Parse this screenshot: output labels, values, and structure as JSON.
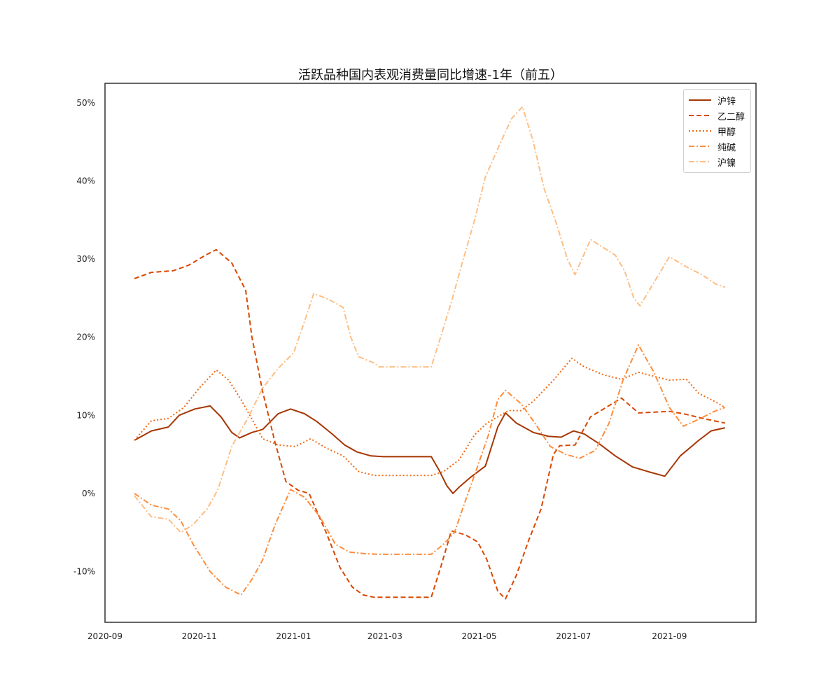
{
  "chart_data": {
    "type": "line",
    "title": "活跃品种国内表观消费量同比增速-1年（前五）",
    "xlabel": "",
    "ylabel": "",
    "x_tick_labels": [
      "2020-09",
      "2020-11",
      "2021-01",
      "2021-03",
      "2021-05",
      "2021-07",
      "2021-09"
    ],
    "y_tick_labels": [
      "-10%",
      "0%",
      "10%",
      "20%",
      "30%",
      "40%",
      "50%"
    ],
    "y_ticks": [
      -10,
      0,
      10,
      20,
      30,
      40,
      50
    ],
    "ylim": [
      -16.5,
      52.5
    ],
    "xlim": [
      "2020-09-01",
      "2021-10-27"
    ],
    "grid": false,
    "legend_position": "top-right",
    "series": [
      {
        "name": "沪锌",
        "color": "#a63603",
        "dash": "solid",
        "points": [
          [
            "2020-09-20",
            6.8
          ],
          [
            "2020-10-01",
            8.0
          ],
          [
            "2020-10-12",
            8.5
          ],
          [
            "2020-10-19",
            10.0
          ],
          [
            "2020-10-29",
            10.8
          ],
          [
            "2020-11-08",
            11.2
          ],
          [
            "2020-11-15",
            9.8
          ],
          [
            "2020-11-22",
            7.8
          ],
          [
            "2020-11-27",
            7.1
          ],
          [
            "2020-12-05",
            7.8
          ],
          [
            "2020-12-12",
            8.2
          ],
          [
            "2020-12-22",
            10.2
          ],
          [
            "2020-12-30",
            10.8
          ],
          [
            "2021-01-08",
            10.2
          ],
          [
            "2021-01-16",
            9.2
          ],
          [
            "2021-01-26",
            7.6
          ],
          [
            "2021-02-03",
            6.2
          ],
          [
            "2021-02-11",
            5.3
          ],
          [
            "2021-02-20",
            4.8
          ],
          [
            "2021-02-28",
            4.7
          ],
          [
            "2021-03-31",
            4.7
          ],
          [
            "2021-04-05",
            3.0
          ],
          [
            "2021-04-10",
            1.0
          ],
          [
            "2021-04-14",
            0.0
          ],
          [
            "2021-04-18",
            0.8
          ],
          [
            "2021-04-25",
            2.0
          ],
          [
            "2021-05-05",
            3.5
          ],
          [
            "2021-05-13",
            8.5
          ],
          [
            "2021-05-18",
            10.3
          ],
          [
            "2021-05-25",
            9.0
          ],
          [
            "2021-06-05",
            7.8
          ],
          [
            "2021-06-15",
            7.3
          ],
          [
            "2021-06-23",
            7.2
          ],
          [
            "2021-07-01",
            8.0
          ],
          [
            "2021-07-08",
            7.6
          ],
          [
            "2021-07-18",
            6.3
          ],
          [
            "2021-07-28",
            4.8
          ],
          [
            "2021-08-08",
            3.4
          ],
          [
            "2021-08-18",
            2.8
          ],
          [
            "2021-08-29",
            2.2
          ],
          [
            "2021-09-08",
            4.8
          ],
          [
            "2021-09-20",
            6.8
          ],
          [
            "2021-09-28",
            8.0
          ],
          [
            "2021-10-07",
            8.4
          ]
        ]
      },
      {
        "name": "乙二醇",
        "color": "#d94801",
        "dash": "dashed",
        "points": [
          [
            "2020-09-20",
            27.5
          ],
          [
            "2020-10-01",
            28.3
          ],
          [
            "2020-10-15",
            28.5
          ],
          [
            "2020-10-25",
            29.2
          ],
          [
            "2020-11-05",
            30.5
          ],
          [
            "2020-11-12",
            31.2
          ],
          [
            "2020-11-22",
            29.5
          ],
          [
            "2020-12-01",
            26.0
          ],
          [
            "2020-12-05",
            20.0
          ],
          [
            "2020-12-12",
            13.0
          ],
          [
            "2020-12-20",
            6.5
          ],
          [
            "2020-12-27",
            1.5
          ],
          [
            "2021-01-04",
            0.4
          ],
          [
            "2021-01-11",
            0.0
          ],
          [
            "2021-01-22",
            -5.0
          ],
          [
            "2021-01-31",
            -9.5
          ],
          [
            "2021-02-08",
            -12.0
          ],
          [
            "2021-02-15",
            -13.0
          ],
          [
            "2021-02-22",
            -13.3
          ],
          [
            "2021-03-31",
            -13.3
          ],
          [
            "2021-04-06",
            -9.5
          ],
          [
            "2021-04-13",
            -4.8
          ],
          [
            "2021-04-22",
            -5.3
          ],
          [
            "2021-04-30",
            -6.2
          ],
          [
            "2021-05-06",
            -8.5
          ],
          [
            "2021-05-13",
            -12.5
          ],
          [
            "2021-05-18",
            -13.5
          ],
          [
            "2021-05-25",
            -10.5
          ],
          [
            "2021-06-02",
            -6.0
          ],
          [
            "2021-06-10",
            -2.0
          ],
          [
            "2021-06-18",
            5.0
          ],
          [
            "2021-06-22",
            6.1
          ],
          [
            "2021-07-02",
            6.2
          ],
          [
            "2021-07-12",
            9.8
          ],
          [
            "2021-07-22",
            11.0
          ],
          [
            "2021-08-01",
            12.2
          ],
          [
            "2021-08-12",
            10.3
          ],
          [
            "2021-09-01",
            10.5
          ],
          [
            "2021-09-10",
            10.2
          ],
          [
            "2021-09-25",
            9.5
          ],
          [
            "2021-10-07",
            9.0
          ]
        ]
      },
      {
        "name": "甲醇",
        "color": "#f16913",
        "dash": "dotted",
        "points": [
          [
            "2020-09-20",
            6.8
          ],
          [
            "2020-10-01",
            9.3
          ],
          [
            "2020-10-12",
            9.6
          ],
          [
            "2020-10-22",
            11.0
          ],
          [
            "2020-11-01",
            13.5
          ],
          [
            "2020-11-12",
            15.8
          ],
          [
            "2020-11-20",
            14.5
          ],
          [
            "2020-11-28",
            12.0
          ],
          [
            "2020-12-05",
            9.5
          ],
          [
            "2020-12-12",
            7.0
          ],
          [
            "2020-12-22",
            6.2
          ],
          [
            "2021-01-02",
            6.0
          ],
          [
            "2021-01-12",
            7.0
          ],
          [
            "2021-01-22",
            5.8
          ],
          [
            "2021-02-02",
            4.8
          ],
          [
            "2021-02-12",
            2.8
          ],
          [
            "2021-02-22",
            2.3
          ],
          [
            "2021-03-31",
            2.3
          ],
          [
            "2021-04-08",
            2.8
          ],
          [
            "2021-04-18",
            4.3
          ],
          [
            "2021-04-28",
            7.5
          ],
          [
            "2021-05-06",
            9.0
          ],
          [
            "2021-05-13",
            9.8
          ],
          [
            "2021-05-20",
            10.6
          ],
          [
            "2021-05-28",
            10.6
          ],
          [
            "2021-06-05",
            11.8
          ],
          [
            "2021-06-18",
            14.5
          ],
          [
            "2021-06-30",
            17.3
          ],
          [
            "2021-07-08",
            16.2
          ],
          [
            "2021-07-20",
            15.2
          ],
          [
            "2021-08-01",
            14.6
          ],
          [
            "2021-08-12",
            15.5
          ],
          [
            "2021-08-22",
            15.0
          ],
          [
            "2021-09-01",
            14.5
          ],
          [
            "2021-09-12",
            14.6
          ],
          [
            "2021-09-20",
            12.8
          ],
          [
            "2021-09-30",
            11.8
          ],
          [
            "2021-10-07",
            11.0
          ]
        ]
      },
      {
        "name": "纯碱",
        "color": "#fd8d3c",
        "dash": "dashdot",
        "points": [
          [
            "2020-09-20",
            0.0
          ],
          [
            "2020-10-01",
            -1.5
          ],
          [
            "2020-10-12",
            -2.0
          ],
          [
            "2020-10-20",
            -3.5
          ],
          [
            "2020-10-28",
            -6.5
          ],
          [
            "2020-11-08",
            -10.0
          ],
          [
            "2020-11-18",
            -12.0
          ],
          [
            "2020-11-28",
            -13.0
          ],
          [
            "2020-12-05",
            -11.0
          ],
          [
            "2020-12-12",
            -8.5
          ],
          [
            "2020-12-20",
            -4.0
          ],
          [
            "2020-12-30",
            0.5
          ],
          [
            "2021-01-08",
            -0.5
          ],
          [
            "2021-01-18",
            -3.0
          ],
          [
            "2021-01-28",
            -6.5
          ],
          [
            "2021-02-06",
            -7.5
          ],
          [
            "2021-02-15",
            -7.7
          ],
          [
            "2021-02-25",
            -7.8
          ],
          [
            "2021-03-31",
            -7.8
          ],
          [
            "2021-04-08",
            -6.5
          ],
          [
            "2021-04-15",
            -5.0
          ],
          [
            "2021-04-22",
            -1.0
          ],
          [
            "2021-04-30",
            3.5
          ],
          [
            "2021-05-07",
            7.5
          ],
          [
            "2021-05-13",
            12.0
          ],
          [
            "2021-05-18",
            13.2
          ],
          [
            "2021-05-28",
            11.5
          ],
          [
            "2021-06-06",
            9.0
          ],
          [
            "2021-06-16",
            6.0
          ],
          [
            "2021-06-26",
            5.0
          ],
          [
            "2021-07-05",
            4.5
          ],
          [
            "2021-07-15",
            5.5
          ],
          [
            "2021-07-24",
            9.0
          ],
          [
            "2021-08-02",
            14.5
          ],
          [
            "2021-08-12",
            19.0
          ],
          [
            "2021-08-22",
            15.5
          ],
          [
            "2021-09-01",
            11.0
          ],
          [
            "2021-09-10",
            8.6
          ],
          [
            "2021-09-20",
            9.5
          ],
          [
            "2021-09-30",
            10.5
          ],
          [
            "2021-10-07",
            11.0
          ]
        ]
      },
      {
        "name": "沪镍",
        "color": "#fdbe85",
        "dash": "dashdot",
        "points": [
          [
            "2020-09-20",
            -0.3
          ],
          [
            "2020-10-01",
            -3.0
          ],
          [
            "2020-10-12",
            -3.3
          ],
          [
            "2020-10-20",
            -5.0
          ],
          [
            "2020-10-28",
            -4.0
          ],
          [
            "2020-11-06",
            -2.0
          ],
          [
            "2020-11-13",
            0.5
          ],
          [
            "2020-11-22",
            6.0
          ],
          [
            "2020-12-02",
            9.5
          ],
          [
            "2020-12-12",
            13.5
          ],
          [
            "2020-12-22",
            16.0
          ],
          [
            "2021-01-01",
            18.0
          ],
          [
            "2021-01-08",
            22.0
          ],
          [
            "2021-01-14",
            25.6
          ],
          [
            "2021-01-24",
            24.8
          ],
          [
            "2021-02-02",
            23.8
          ],
          [
            "2021-02-07",
            20.0
          ],
          [
            "2021-02-12",
            17.5
          ],
          [
            "2021-02-22",
            16.7
          ],
          [
            "2021-02-25",
            16.2
          ],
          [
            "2021-03-31",
            16.2
          ],
          [
            "2021-04-06",
            20.0
          ],
          [
            "2021-04-13",
            24.5
          ],
          [
            "2021-04-20",
            29.5
          ],
          [
            "2021-04-28",
            35.0
          ],
          [
            "2021-05-05",
            40.5
          ],
          [
            "2021-05-15",
            45.0
          ],
          [
            "2021-05-22",
            48.0
          ],
          [
            "2021-05-29",
            49.5
          ],
          [
            "2021-06-05",
            45.0
          ],
          [
            "2021-06-12",
            39.0
          ],
          [
            "2021-06-20",
            34.5
          ],
          [
            "2021-06-27",
            30.0
          ],
          [
            "2021-07-02",
            28.0
          ],
          [
            "2021-07-12",
            32.5
          ],
          [
            "2021-07-20",
            31.5
          ],
          [
            "2021-07-28",
            30.5
          ],
          [
            "2021-08-03",
            28.5
          ],
          [
            "2021-08-09",
            25.0
          ],
          [
            "2021-08-13",
            24.0
          ],
          [
            "2021-08-22",
            27.0
          ],
          [
            "2021-09-01",
            30.3
          ],
          [
            "2021-09-12",
            29.0
          ],
          [
            "2021-09-22",
            28.0
          ],
          [
            "2021-10-01",
            26.8
          ],
          [
            "2021-10-07",
            26.4
          ]
        ]
      }
    ]
  }
}
